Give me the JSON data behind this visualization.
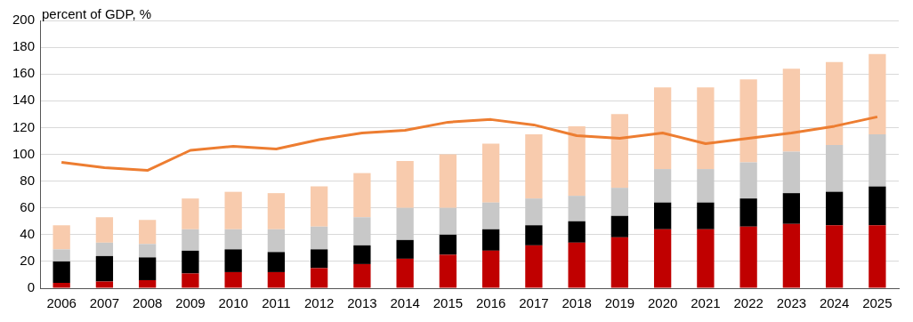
{
  "chart_data": {
    "type": "bar",
    "stacked": true,
    "ylabel": "percent of GDP, %",
    "categories": [
      "2006",
      "2007",
      "2008",
      "2009",
      "2010",
      "2011",
      "2012",
      "2013",
      "2014",
      "2015",
      "2016",
      "2017",
      "2018",
      "2019",
      "2020",
      "2021",
      "2022",
      "2023",
      "2024",
      "2025"
    ],
    "series": [
      {
        "color": "#c00000",
        "values": [
          4,
          5,
          6,
          11,
          12,
          12,
          15,
          18,
          22,
          25,
          28,
          32,
          34,
          38,
          44,
          44,
          46,
          48,
          47,
          47
        ]
      },
      {
        "color": "#000000",
        "values": [
          16,
          19,
          17,
          17,
          17,
          15,
          14,
          14,
          14,
          15,
          16,
          15,
          16,
          16,
          20,
          20,
          21,
          23,
          25,
          29
        ]
      },
      {
        "color": "#c8c8c8",
        "values": [
          9,
          10,
          10,
          16,
          15,
          17,
          17,
          21,
          24,
          20,
          20,
          20,
          19,
          21,
          25,
          25,
          27,
          31,
          35,
          39
        ]
      },
      {
        "color": "#f8cbad",
        "values": [
          18,
          19,
          18,
          23,
          28,
          27,
          30,
          33,
          35,
          40,
          44,
          48,
          52,
          55,
          61,
          61,
          62,
          62,
          62,
          60
        ]
      },
      {
        "type": "line",
        "color": "#ed7d31",
        "values": [
          94,
          90,
          88,
          103,
          106,
          104,
          111,
          116,
          118,
          124,
          126,
          122,
          114,
          112,
          116,
          108,
          112,
          116,
          121,
          128
        ]
      }
    ],
    "ylim": [
      0,
      200
    ],
    "yticks": [
      0,
      20,
      40,
      60,
      80,
      100,
      120,
      140,
      160,
      180,
      200
    ],
    "grid": "y",
    "legend": false
  }
}
